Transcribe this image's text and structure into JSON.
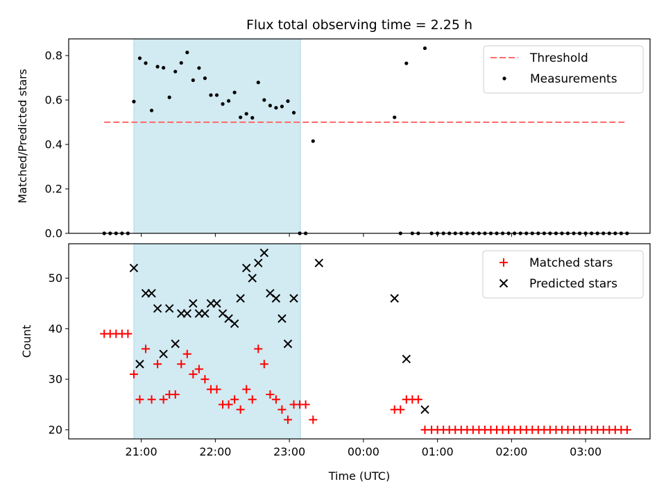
{
  "chart_data": {
    "type": "scatter",
    "title": "Flux total observing time = 2.25 h",
    "xlabel": "Time (UTC)",
    "x_unit": "hours after 00:00 UTC (date rolls over at 00:00)",
    "xlim": [
      -3.98,
      3.87
    ],
    "xticks": [
      {
        "value": -3,
        "label": "21:00"
      },
      {
        "value": -2,
        "label": "22:00"
      },
      {
        "value": -1,
        "label": "23:00"
      },
      {
        "value": 0,
        "label": "00:00"
      },
      {
        "value": 1,
        "label": "01:00"
      },
      {
        "value": 2,
        "label": "02:00"
      },
      {
        "value": 3,
        "label": "03:00"
      }
    ],
    "shaded_interval": [
      -3.1,
      -0.85
    ],
    "shade_color": "#add8e6",
    "panels": [
      {
        "id": "ratio",
        "ylabel": "Matched/Predicted stars",
        "ylim": [
          0.0,
          0.875
        ],
        "yticks": [
          {
            "value": 0.0,
            "label": "0.0"
          },
          {
            "value": 0.2,
            "label": "0.2"
          },
          {
            "value": 0.4,
            "label": "0.4"
          },
          {
            "value": 0.6,
            "label": "0.6"
          },
          {
            "value": 0.8,
            "label": "0.8"
          }
        ],
        "legend": [
          "Threshold",
          "Measurements"
        ],
        "threshold": {
          "name": "Threshold",
          "y": 0.5,
          "x": [
            -3.5,
            3.55
          ],
          "color": "#ff6b6b"
        },
        "series": [
          {
            "name": "Measurements",
            "marker": "dot",
            "color": "#000000",
            "points": [
              [
                -3.5,
                0.0
              ],
              [
                -3.42,
                0.0
              ],
              [
                -3.34,
                0.0
              ],
              [
                -3.26,
                0.0
              ],
              [
                -3.18,
                0.0
              ],
              [
                -3.1,
                0.593
              ],
              [
                -3.02,
                0.788
              ],
              [
                -2.94,
                0.766
              ],
              [
                -2.86,
                0.553
              ],
              [
                -2.78,
                0.75
              ],
              [
                -2.7,
                0.745
              ],
              [
                -2.62,
                0.612
              ],
              [
                -2.54,
                0.728
              ],
              [
                -2.46,
                0.767
              ],
              [
                -2.38,
                0.814
              ],
              [
                -2.3,
                0.689
              ],
              [
                -2.22,
                0.744
              ],
              [
                -2.14,
                0.698
              ],
              [
                -2.06,
                0.622
              ],
              [
                -1.98,
                0.622
              ],
              [
                -1.9,
                0.582
              ],
              [
                -1.82,
                0.596
              ],
              [
                -1.74,
                0.634
              ],
              [
                -1.66,
                0.522
              ],
              [
                -1.58,
                0.538
              ],
              [
                -1.5,
                0.52
              ],
              [
                -1.42,
                0.679
              ],
              [
                -1.34,
                0.6
              ],
              [
                -1.26,
                0.575
              ],
              [
                -1.18,
                0.565
              ],
              [
                -1.1,
                0.571
              ],
              [
                -1.02,
                0.595
              ],
              [
                -0.94,
                0.543
              ],
              [
                -0.86,
                0.0
              ],
              [
                -0.78,
                0.0
              ],
              [
                -0.68,
                0.415
              ],
              [
                0.42,
                0.522
              ],
              [
                0.5,
                0.0
              ],
              [
                0.58,
                0.765
              ],
              [
                0.66,
                0.0
              ],
              [
                0.74,
                0.0
              ],
              [
                0.83,
                0.833
              ],
              [
                0.92,
                0.0
              ],
              [
                1.0,
                0.0
              ],
              [
                1.08,
                0.0
              ],
              [
                1.16,
                0.0
              ],
              [
                1.24,
                0.0
              ],
              [
                1.32,
                0.0
              ],
              [
                1.4,
                0.0
              ],
              [
                1.48,
                0.0
              ],
              [
                1.56,
                0.0
              ],
              [
                1.64,
                0.0
              ],
              [
                1.72,
                0.0
              ],
              [
                1.8,
                0.0
              ],
              [
                1.88,
                0.0
              ],
              [
                1.96,
                0.0
              ],
              [
                2.04,
                0.0
              ],
              [
                2.12,
                0.0
              ],
              [
                2.2,
                0.0
              ],
              [
                2.28,
                0.0
              ],
              [
                2.36,
                0.0
              ],
              [
                2.44,
                0.0
              ],
              [
                2.52,
                0.0
              ],
              [
                2.6,
                0.0
              ],
              [
                2.68,
                0.0
              ],
              [
                2.76,
                0.0
              ],
              [
                2.84,
                0.0
              ],
              [
                2.92,
                0.0
              ],
              [
                3.0,
                0.0
              ],
              [
                3.08,
                0.0
              ],
              [
                3.16,
                0.0
              ],
              [
                3.24,
                0.0
              ],
              [
                3.32,
                0.0
              ],
              [
                3.4,
                0.0
              ],
              [
                3.48,
                0.0
              ],
              [
                3.56,
                0.0
              ]
            ]
          }
        ]
      },
      {
        "id": "count",
        "ylabel": "Count",
        "ylim": [
          18.2,
          56.8
        ],
        "yticks": [
          {
            "value": 20,
            "label": "20"
          },
          {
            "value": 30,
            "label": "30"
          },
          {
            "value": 40,
            "label": "40"
          },
          {
            "value": 50,
            "label": "50"
          }
        ],
        "legend": [
          "Matched stars",
          "Predicted stars"
        ],
        "series": [
          {
            "name": "Matched stars",
            "marker": "plus",
            "color": "#ff0000",
            "points": [
              [
                -3.5,
                39
              ],
              [
                -3.42,
                39
              ],
              [
                -3.34,
                39
              ],
              [
                -3.26,
                39
              ],
              [
                -3.18,
                39
              ],
              [
                -3.1,
                31
              ],
              [
                -3.02,
                26
              ],
              [
                -2.94,
                36
              ],
              [
                -2.86,
                26
              ],
              [
                -2.78,
                33
              ],
              [
                -2.7,
                26
              ],
              [
                -2.62,
                27
              ],
              [
                -2.54,
                27
              ],
              [
                -2.46,
                33
              ],
              [
                -2.38,
                35
              ],
              [
                -2.3,
                31
              ],
              [
                -2.22,
                32
              ],
              [
                -2.14,
                30
              ],
              [
                -2.06,
                28
              ],
              [
                -1.98,
                28
              ],
              [
                -1.9,
                25
              ],
              [
                -1.82,
                25
              ],
              [
                -1.74,
                26
              ],
              [
                -1.66,
                24
              ],
              [
                -1.58,
                28
              ],
              [
                -1.5,
                26
              ],
              [
                -1.42,
                36
              ],
              [
                -1.34,
                33
              ],
              [
                -1.26,
                27
              ],
              [
                -1.18,
                26
              ],
              [
                -1.1,
                24
              ],
              [
                -1.02,
                22
              ],
              [
                -0.94,
                25
              ],
              [
                -0.86,
                25
              ],
              [
                -0.78,
                25
              ],
              [
                -0.68,
                22
              ],
              [
                0.42,
                24
              ],
              [
                0.5,
                24
              ],
              [
                0.58,
                26
              ],
              [
                0.66,
                26
              ],
              [
                0.74,
                26
              ],
              [
                0.83,
                20
              ],
              [
                0.92,
                20
              ],
              [
                1.0,
                20
              ],
              [
                1.08,
                20
              ],
              [
                1.16,
                20
              ],
              [
                1.24,
                20
              ],
              [
                1.32,
                20
              ],
              [
                1.4,
                20
              ],
              [
                1.48,
                20
              ],
              [
                1.56,
                20
              ],
              [
                1.64,
                20
              ],
              [
                1.72,
                20
              ],
              [
                1.8,
                20
              ],
              [
                1.88,
                20
              ],
              [
                1.96,
                20
              ],
              [
                2.04,
                20
              ],
              [
                2.12,
                20
              ],
              [
                2.2,
                20
              ],
              [
                2.28,
                20
              ],
              [
                2.36,
                20
              ],
              [
                2.44,
                20
              ],
              [
                2.52,
                20
              ],
              [
                2.6,
                20
              ],
              [
                2.68,
                20
              ],
              [
                2.76,
                20
              ],
              [
                2.84,
                20
              ],
              [
                2.92,
                20
              ],
              [
                3.0,
                20
              ],
              [
                3.08,
                20
              ],
              [
                3.16,
                20
              ],
              [
                3.24,
                20
              ],
              [
                3.32,
                20
              ],
              [
                3.4,
                20
              ],
              [
                3.48,
                20
              ],
              [
                3.56,
                20
              ]
            ]
          },
          {
            "name": "Predicted stars",
            "marker": "x",
            "color": "#000000",
            "points": [
              [
                -3.1,
                52
              ],
              [
                -3.02,
                33
              ],
              [
                -2.94,
                47
              ],
              [
                -2.86,
                47
              ],
              [
                -2.78,
                44
              ],
              [
                -2.7,
                35
              ],
              [
                -2.62,
                44
              ],
              [
                -2.54,
                37
              ],
              [
                -2.46,
                43
              ],
              [
                -2.38,
                43
              ],
              [
                -2.3,
                45
              ],
              [
                -2.22,
                43
              ],
              [
                -2.14,
                43
              ],
              [
                -2.06,
                45
              ],
              [
                -1.98,
                45
              ],
              [
                -1.9,
                43
              ],
              [
                -1.82,
                42
              ],
              [
                -1.74,
                41
              ],
              [
                -1.66,
                46
              ],
              [
                -1.58,
                52
              ],
              [
                -1.5,
                50
              ],
              [
                -1.42,
                53
              ],
              [
                -1.34,
                55
              ],
              [
                -1.26,
                47
              ],
              [
                -1.18,
                46
              ],
              [
                -1.1,
                42
              ],
              [
                -1.02,
                37
              ],
              [
                -0.94,
                46
              ],
              [
                -0.6,
                53
              ],
              [
                0.42,
                46
              ],
              [
                0.58,
                34
              ],
              [
                0.83,
                24
              ]
            ]
          }
        ]
      }
    ]
  }
}
